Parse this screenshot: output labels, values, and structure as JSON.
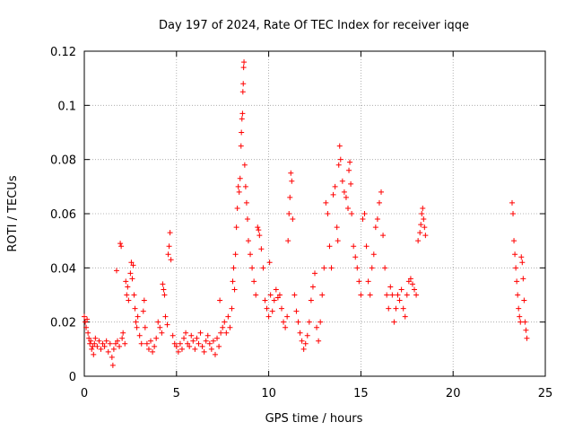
{
  "chart_data": {
    "type": "scatter",
    "title": "Day 197 of 2024, Rate Of TEC Index for receiver iqqe",
    "xlabel": "GPS time / hours",
    "ylabel": "ROTI / TECUs",
    "xlim": [
      0,
      25
    ],
    "ylim": [
      0,
      0.12
    ],
    "xticks": [
      "0",
      "5",
      "10",
      "15",
      "20",
      "25"
    ],
    "yticks": [
      "0",
      "0.02",
      "0.04",
      "0.06",
      "0.08",
      "0.1",
      "0.12"
    ],
    "grid": true,
    "legend": "none",
    "marker": "plus",
    "color": "#ff0000",
    "series": [
      {
        "points": [
          [
            0.0,
            0.022
          ],
          [
            0.05,
            0.02
          ],
          [
            0.1,
            0.018
          ],
          [
            0.15,
            0.021
          ],
          [
            0.2,
            0.016
          ],
          [
            0.25,
            0.014
          ],
          [
            0.3,
            0.012
          ],
          [
            0.35,
            0.013
          ],
          [
            0.4,
            0.01
          ],
          [
            0.45,
            0.011
          ],
          [
            0.5,
            0.008
          ],
          [
            0.55,
            0.012
          ],
          [
            0.6,
            0.014
          ],
          [
            0.7,
            0.011
          ],
          [
            0.8,
            0.013
          ],
          [
            0.9,
            0.01
          ],
          [
            1.0,
            0.012
          ],
          [
            1.1,
            0.011
          ],
          [
            1.2,
            0.013
          ],
          [
            1.3,
            0.009
          ],
          [
            1.4,
            0.012
          ],
          [
            1.5,
            0.007
          ],
          [
            1.55,
            0.004
          ],
          [
            1.6,
            0.01
          ],
          [
            1.7,
            0.012
          ],
          [
            1.75,
            0.039
          ],
          [
            1.8,
            0.013
          ],
          [
            1.9,
            0.011
          ],
          [
            1.95,
            0.049
          ],
          [
            2.0,
            0.048
          ],
          [
            2.05,
            0.014
          ],
          [
            2.1,
            0.016
          ],
          [
            2.2,
            0.012
          ],
          [
            2.25,
            0.035
          ],
          [
            2.3,
            0.03
          ],
          [
            2.35,
            0.033
          ],
          [
            2.4,
            0.028
          ],
          [
            2.5,
            0.038
          ],
          [
            2.55,
            0.042
          ],
          [
            2.6,
            0.036
          ],
          [
            2.65,
            0.041
          ],
          [
            2.7,
            0.03
          ],
          [
            2.75,
            0.025
          ],
          [
            2.8,
            0.02
          ],
          [
            2.85,
            0.018
          ],
          [
            2.9,
            0.022
          ],
          [
            3.0,
            0.015
          ],
          [
            3.1,
            0.012
          ],
          [
            3.2,
            0.024
          ],
          [
            3.25,
            0.028
          ],
          [
            3.3,
            0.018
          ],
          [
            3.4,
            0.012
          ],
          [
            3.5,
            0.01
          ],
          [
            3.6,
            0.013
          ],
          [
            3.7,
            0.009
          ],
          [
            3.8,
            0.011
          ],
          [
            3.9,
            0.014
          ],
          [
            4.0,
            0.02
          ],
          [
            4.1,
            0.018
          ],
          [
            4.2,
            0.016
          ],
          [
            4.25,
            0.034
          ],
          [
            4.3,
            0.032
          ],
          [
            4.35,
            0.03
          ],
          [
            4.4,
            0.022
          ],
          [
            4.5,
            0.019
          ],
          [
            4.55,
            0.045
          ],
          [
            4.6,
            0.048
          ],
          [
            4.65,
            0.053
          ],
          [
            4.7,
            0.043
          ],
          [
            4.8,
            0.015
          ],
          [
            4.9,
            0.012
          ],
          [
            5.0,
            0.011
          ],
          [
            5.1,
            0.009
          ],
          [
            5.2,
            0.012
          ],
          [
            5.3,
            0.01
          ],
          [
            5.4,
            0.014
          ],
          [
            5.5,
            0.016
          ],
          [
            5.6,
            0.012
          ],
          [
            5.7,
            0.011
          ],
          [
            5.8,
            0.015
          ],
          [
            5.9,
            0.013
          ],
          [
            6.0,
            0.01
          ],
          [
            6.1,
            0.014
          ],
          [
            6.2,
            0.012
          ],
          [
            6.3,
            0.016
          ],
          [
            6.4,
            0.011
          ],
          [
            6.5,
            0.009
          ],
          [
            6.6,
            0.013
          ],
          [
            6.7,
            0.015
          ],
          [
            6.8,
            0.012
          ],
          [
            6.9,
            0.01
          ],
          [
            7.0,
            0.013
          ],
          [
            7.1,
            0.008
          ],
          [
            7.2,
            0.014
          ],
          [
            7.3,
            0.011
          ],
          [
            7.35,
            0.028
          ],
          [
            7.4,
            0.016
          ],
          [
            7.5,
            0.018
          ],
          [
            7.6,
            0.02
          ],
          [
            7.7,
            0.016
          ],
          [
            7.8,
            0.022
          ],
          [
            7.9,
            0.018
          ],
          [
            8.0,
            0.025
          ],
          [
            8.05,
            0.035
          ],
          [
            8.1,
            0.04
          ],
          [
            8.15,
            0.032
          ],
          [
            8.2,
            0.045
          ],
          [
            8.25,
            0.055
          ],
          [
            8.3,
            0.062
          ],
          [
            8.35,
            0.07
          ],
          [
            8.4,
            0.068
          ],
          [
            8.45,
            0.073
          ],
          [
            8.5,
            0.085
          ],
          [
            8.52,
            0.09
          ],
          [
            8.55,
            0.095
          ],
          [
            8.58,
            0.097
          ],
          [
            8.6,
            0.105
          ],
          [
            8.62,
            0.108
          ],
          [
            8.64,
            0.114
          ],
          [
            8.66,
            0.116
          ],
          [
            8.7,
            0.078
          ],
          [
            8.75,
            0.07
          ],
          [
            8.8,
            0.064
          ],
          [
            8.85,
            0.058
          ],
          [
            8.9,
            0.05
          ],
          [
            9.0,
            0.045
          ],
          [
            9.1,
            0.04
          ],
          [
            9.2,
            0.035
          ],
          [
            9.3,
            0.03
          ],
          [
            9.4,
            0.055
          ],
          [
            9.45,
            0.054
          ],
          [
            9.5,
            0.052
          ],
          [
            9.6,
            0.047
          ],
          [
            9.7,
            0.04
          ],
          [
            9.8,
            0.028
          ],
          [
            9.9,
            0.025
          ],
          [
            10.0,
            0.022
          ],
          [
            10.05,
            0.042
          ],
          [
            10.1,
            0.03
          ],
          [
            10.2,
            0.024
          ],
          [
            10.3,
            0.028
          ],
          [
            10.4,
            0.032
          ],
          [
            10.5,
            0.029
          ],
          [
            10.6,
            0.03
          ],
          [
            10.7,
            0.025
          ],
          [
            10.8,
            0.02
          ],
          [
            10.9,
            0.018
          ],
          [
            11.0,
            0.022
          ],
          [
            11.05,
            0.05
          ],
          [
            11.1,
            0.06
          ],
          [
            11.15,
            0.066
          ],
          [
            11.2,
            0.075
          ],
          [
            11.25,
            0.072
          ],
          [
            11.3,
            0.058
          ],
          [
            11.4,
            0.03
          ],
          [
            11.5,
            0.024
          ],
          [
            11.6,
            0.02
          ],
          [
            11.7,
            0.016
          ],
          [
            11.8,
            0.013
          ],
          [
            11.9,
            0.01
          ],
          [
            12.0,
            0.012
          ],
          [
            12.1,
            0.015
          ],
          [
            12.2,
            0.02
          ],
          [
            12.3,
            0.028
          ],
          [
            12.4,
            0.033
          ],
          [
            12.5,
            0.038
          ],
          [
            12.6,
            0.018
          ],
          [
            12.7,
            0.013
          ],
          [
            12.8,
            0.02
          ],
          [
            12.9,
            0.03
          ],
          [
            13.0,
            0.04
          ],
          [
            13.1,
            0.064
          ],
          [
            13.2,
            0.06
          ],
          [
            13.3,
            0.048
          ],
          [
            13.4,
            0.04
          ],
          [
            13.5,
            0.067
          ],
          [
            13.6,
            0.07
          ],
          [
            13.7,
            0.055
          ],
          [
            13.75,
            0.05
          ],
          [
            13.8,
            0.078
          ],
          [
            13.85,
            0.085
          ],
          [
            13.9,
            0.08
          ],
          [
            14.0,
            0.072
          ],
          [
            14.1,
            0.068
          ],
          [
            14.2,
            0.066
          ],
          [
            14.3,
            0.062
          ],
          [
            14.35,
            0.076
          ],
          [
            14.4,
            0.079
          ],
          [
            14.45,
            0.071
          ],
          [
            14.5,
            0.06
          ],
          [
            14.6,
            0.048
          ],
          [
            14.7,
            0.044
          ],
          [
            14.8,
            0.04
          ],
          [
            14.9,
            0.035
          ],
          [
            15.0,
            0.03
          ],
          [
            15.1,
            0.058
          ],
          [
            15.2,
            0.06
          ],
          [
            15.3,
            0.048
          ],
          [
            15.4,
            0.035
          ],
          [
            15.5,
            0.03
          ],
          [
            15.6,
            0.04
          ],
          [
            15.7,
            0.045
          ],
          [
            15.8,
            0.055
          ],
          [
            15.9,
            0.058
          ],
          [
            16.0,
            0.064
          ],
          [
            16.1,
            0.068
          ],
          [
            16.2,
            0.052
          ],
          [
            16.3,
            0.04
          ],
          [
            16.4,
            0.03
          ],
          [
            16.5,
            0.025
          ],
          [
            16.6,
            0.033
          ],
          [
            16.7,
            0.03
          ],
          [
            16.8,
            0.02
          ],
          [
            16.9,
            0.025
          ],
          [
            17.0,
            0.03
          ],
          [
            17.1,
            0.028
          ],
          [
            17.2,
            0.032
          ],
          [
            17.3,
            0.025
          ],
          [
            17.4,
            0.022
          ],
          [
            17.5,
            0.03
          ],
          [
            17.6,
            0.035
          ],
          [
            17.7,
            0.036
          ],
          [
            17.8,
            0.034
          ],
          [
            17.9,
            0.032
          ],
          [
            18.0,
            0.03
          ],
          [
            18.1,
            0.05
          ],
          [
            18.2,
            0.053
          ],
          [
            18.25,
            0.056
          ],
          [
            18.3,
            0.06
          ],
          [
            18.35,
            0.062
          ],
          [
            18.4,
            0.058
          ],
          [
            18.45,
            0.055
          ],
          [
            18.5,
            0.052
          ],
          [
            23.2,
            0.064
          ],
          [
            23.25,
            0.06
          ],
          [
            23.3,
            0.05
          ],
          [
            23.35,
            0.045
          ],
          [
            23.4,
            0.04
          ],
          [
            23.45,
            0.035
          ],
          [
            23.5,
            0.03
          ],
          [
            23.55,
            0.025
          ],
          [
            23.6,
            0.022
          ],
          [
            23.65,
            0.02
          ],
          [
            23.7,
            0.044
          ],
          [
            23.75,
            0.042
          ],
          [
            23.8,
            0.036
          ],
          [
            23.85,
            0.028
          ],
          [
            23.9,
            0.02
          ],
          [
            23.95,
            0.017
          ],
          [
            24.0,
            0.014
          ]
        ]
      }
    ]
  }
}
